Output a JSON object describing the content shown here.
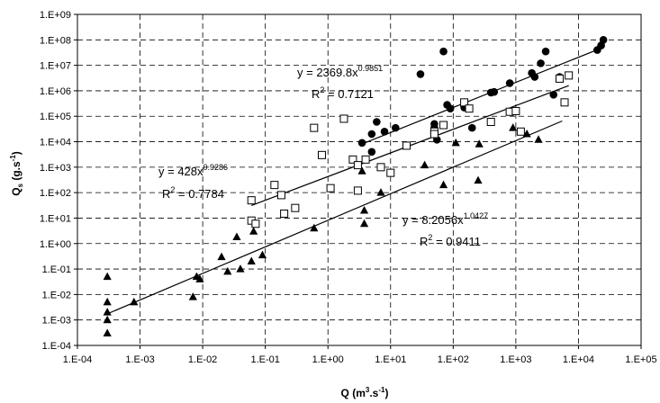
{
  "chart_data": {
    "type": "scatter",
    "x_scale": "log",
    "y_scale": "log",
    "grid": true,
    "xlim": [
      0.0001,
      100000
    ],
    "ylim": [
      0.0001,
      1000000000
    ],
    "x_ticks": [
      "1.E-04",
      "1.E-03",
      "1.E-02",
      "1.E-01",
      "1.E+00",
      "1.E+01",
      "1.E+02",
      "1.E+03",
      "1.E+04",
      "1.E+05"
    ],
    "y_ticks": [
      "1.E-04",
      "1.E-03",
      "1.E-02",
      "1.E-01",
      "1.E+00",
      "1.E+01",
      "1.E+02",
      "1.E+03",
      "1.E+04",
      "1.E+05",
      "1.E+06",
      "1.E+07",
      "1.E+08",
      "1.E+09"
    ],
    "xlabel": {
      "main": "Q (m",
      "sup1": "3",
      "mid": ".s",
      "sup2": "-1",
      "end": ")"
    },
    "ylabel": {
      "main": "Q",
      "sub": "s",
      "mid": " (g.s",
      "sup": "-1",
      "end": ")"
    },
    "series": [
      {
        "marker": "circle",
        "color": "#000000",
        "points": [
          [
            3.5,
            9000
          ],
          [
            5,
            20000
          ],
          [
            6,
            60000
          ],
          [
            5,
            4000
          ],
          [
            8,
            25000
          ],
          [
            12,
            35000
          ],
          [
            30,
            4500000
          ],
          [
            70,
            35000000
          ],
          [
            80,
            280000
          ],
          [
            90,
            200000
          ],
          [
            50,
            50000
          ],
          [
            50,
            35000
          ],
          [
            55,
            12000
          ],
          [
            150,
            220000
          ],
          [
            200,
            35000
          ],
          [
            400,
            850000
          ],
          [
            450,
            900000
          ],
          [
            800,
            2000000
          ],
          [
            1800,
            5000000
          ],
          [
            2000,
            3500000
          ],
          [
            2500,
            12000000
          ],
          [
            3000,
            35000000
          ],
          [
            4000,
            700000
          ],
          [
            5000,
            3500000
          ],
          [
            20000,
            40000000
          ],
          [
            23000,
            60000000
          ],
          [
            25000,
            100000000
          ]
        ]
      },
      {
        "marker": "open-square",
        "color": "#000000",
        "points": [
          [
            0.06,
            50
          ],
          [
            0.06,
            8
          ],
          [
            0.07,
            6
          ],
          [
            0.14,
            200
          ],
          [
            0.18,
            80
          ],
          [
            0.2,
            15
          ],
          [
            0.3,
            25
          ],
          [
            0.6,
            35000
          ],
          [
            0.8,
            3000
          ],
          [
            1.1,
            150
          ],
          [
            1.8,
            80000
          ],
          [
            2.5,
            2000
          ],
          [
            3,
            1200
          ],
          [
            3,
            120
          ],
          [
            4,
            2000
          ],
          [
            7,
            1000
          ],
          [
            10,
            600
          ],
          [
            18,
            7000
          ],
          [
            50,
            25000
          ],
          [
            50,
            20000
          ],
          [
            70,
            45000
          ],
          [
            150,
            350000
          ],
          [
            180,
            200000
          ],
          [
            400,
            60000
          ],
          [
            800,
            150000
          ],
          [
            1000,
            160000
          ],
          [
            1200,
            25000
          ],
          [
            5000,
            3000000
          ],
          [
            6000,
            350000
          ],
          [
            7000,
            4000000
          ]
        ]
      },
      {
        "marker": "triangle",
        "color": "#000000",
        "points": [
          [
            0.0003,
            0.05
          ],
          [
            0.0003,
            0.005
          ],
          [
            0.0003,
            0.002
          ],
          [
            0.0003,
            0.001
          ],
          [
            0.0003,
            0.0003
          ],
          [
            0.0008,
            0.005
          ],
          [
            0.007,
            0.008
          ],
          [
            0.008,
            0.05
          ],
          [
            0.009,
            0.04
          ],
          [
            0.02,
            0.3
          ],
          [
            0.025,
            0.08
          ],
          [
            0.035,
            1.8
          ],
          [
            0.04,
            0.1
          ],
          [
            0.06,
            0.2
          ],
          [
            0.065,
            3
          ],
          [
            0.09,
            0.35
          ],
          [
            0.6,
            4
          ],
          [
            3.5,
            700
          ],
          [
            3.8,
            20
          ],
          [
            3.8,
            6
          ],
          [
            7,
            100
          ],
          [
            35,
            1200
          ],
          [
            70,
            200
          ],
          [
            110,
            9000
          ],
          [
            250,
            300
          ],
          [
            260,
            8000
          ],
          [
            900,
            35000
          ],
          [
            1500,
            20000
          ],
          [
            2300,
            12000
          ]
        ]
      }
    ],
    "fit_lines": [
      {
        "a": 2369.8,
        "b": 0.9851,
        "x_range": [
          3.5,
          25000
        ]
      },
      {
        "a": 428,
        "b": 0.9286,
        "x_range": [
          0.06,
          7000
        ]
      },
      {
        "a": 8.2056,
        "b": 1.0427,
        "x_range": [
          0.0003,
          5500
        ]
      }
    ],
    "annotations": [
      {
        "eq": "y = 2369.8x",
        "exp": "0.9851",
        "r2_label": "R",
        "r2_sup": "2",
        "r2_value": " = 0.7121"
      },
      {
        "eq": "y = 428x",
        "exp": "0.9286",
        "r2_label": "R",
        "r2_sup": "2",
        "r2_value": " = 0.7784"
      },
      {
        "eq": "y = 8.2056x",
        "exp": "1.0427",
        "r2_label": "R",
        "r2_sup": "2",
        "r2_value": " = 0.9411"
      }
    ]
  }
}
